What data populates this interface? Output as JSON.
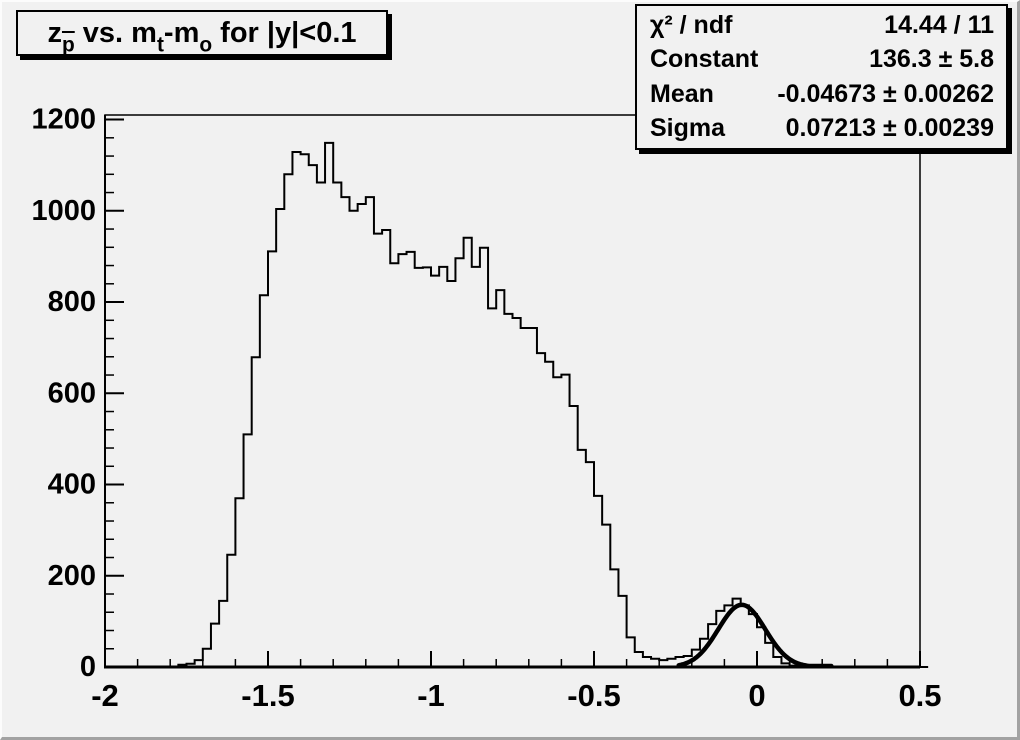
{
  "canvas": {
    "background_color": "#f1f1f1",
    "pave_fill_color": "#f1f1f1",
    "line_color": "#000000"
  },
  "title_box": {
    "text": "z_p̄ vs. m_t-m_o for |y|<0.1",
    "segments": [
      {
        "t": "z"
      },
      {
        "t": "p",
        "sub": true,
        "bar": true
      },
      {
        "t": " vs. m"
      },
      {
        "t": "t",
        "sub": true
      },
      {
        "t": "-m"
      },
      {
        "t": "o",
        "sub": true
      },
      {
        "t": " for |y|<0.1"
      }
    ]
  },
  "stats_box": {
    "rows": [
      {
        "label": "χ² / ndf",
        "value": "14.44 / 11"
      },
      {
        "label": "Constant",
        "value": "136.3 ± 5.8"
      },
      {
        "label": "Mean",
        "value": "-0.04673 ± 0.00262"
      },
      {
        "label": "Sigma",
        "value": "0.07213 ± 0.00239"
      }
    ]
  },
  "chart_data": {
    "type": "bar",
    "subtype": "step-histogram",
    "title": "z_p̄ vs. m_t-m_o for |y|<0.1",
    "xlabel": "",
    "ylabel": "",
    "xlim": [
      -2.0,
      0.5
    ],
    "ylim": [
      0,
      1210
    ],
    "grid": false,
    "legend_position": "none",
    "bin_start": -2.0,
    "bin_width": 0.025,
    "x_major_ticks": [
      -2,
      -1.5,
      -1,
      -0.5,
      0,
      0.5
    ],
    "x_tick_labels": [
      "-2",
      "-1.5",
      "-1",
      "-0.5",
      "0",
      "0.5"
    ],
    "x_minor_step": 0.1,
    "y_major_ticks": [
      0,
      200,
      400,
      600,
      800,
      1000,
      1200
    ],
    "y_tick_labels": [
      "0",
      "200",
      "400",
      "600",
      "800",
      "1000",
      "1200"
    ],
    "y_minor_step": 40,
    "values": [
      0,
      0,
      0,
      0,
      0,
      0,
      0,
      0,
      0,
      5,
      7,
      15,
      40,
      95,
      145,
      246,
      370,
      510,
      679,
      815,
      911,
      1004,
      1080,
      1129,
      1124,
      1100,
      1062,
      1149,
      1062,
      1030,
      1000,
      1015,
      1030,
      950,
      958,
      885,
      905,
      910,
      875,
      876,
      858,
      877,
      846,
      896,
      941,
      877,
      919,
      786,
      826,
      774,
      765,
      743,
      743,
      688,
      669,
      635,
      641,
      572,
      476,
      449,
      375,
      312,
      214,
      156,
      65,
      33,
      22,
      18,
      15,
      18,
      22,
      24,
      38,
      62,
      94,
      123,
      135,
      150,
      135,
      116,
      87,
      53,
      22,
      8,
      3,
      1,
      0,
      0,
      0,
      0,
      0,
      0,
      0,
      0,
      0,
      0,
      0,
      0,
      0,
      0,
      0
    ],
    "fit": {
      "type": "gaussian",
      "constant": 136.3,
      "mean": -0.04673,
      "sigma": 0.07213,
      "draw_range": [
        -0.24,
        0.23
      ],
      "line_color": "#000000"
    }
  }
}
